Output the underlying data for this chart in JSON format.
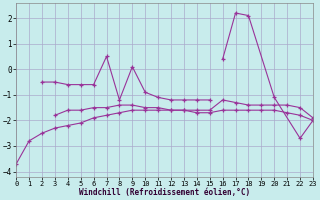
{
  "xlabel": "Windchill (Refroidissement éolien,°C)",
  "xlim": [
    0,
    23
  ],
  "ylim": [
    -4.2,
    2.6
  ],
  "xticks": [
    0,
    1,
    2,
    3,
    4,
    5,
    6,
    7,
    8,
    9,
    10,
    11,
    12,
    13,
    14,
    15,
    16,
    17,
    18,
    19,
    20,
    21,
    22,
    23
  ],
  "yticks": [
    -4,
    -3,
    -2,
    -1,
    0,
    1,
    2
  ],
  "background_color": "#c8ecec",
  "grid_color": "#aaaacc",
  "line_color": "#993399",
  "series": [
    [
      null,
      null,
      -0.5,
      -0.5,
      -0.6,
      -0.6,
      -0.6,
      0.5,
      -1.2,
      0.1,
      -0.9,
      -1.1,
      -1.2,
      -1.2,
      -1.2,
      -1.2,
      null,
      null,
      null,
      null,
      null,
      null,
      null,
      null
    ],
    [
      null,
      null,
      null,
      -1.8,
      -1.6,
      -1.6,
      -1.5,
      -1.5,
      -1.4,
      -1.4,
      -1.5,
      -1.5,
      -1.6,
      -1.6,
      -1.6,
      -1.6,
      -1.2,
      -1.3,
      -1.4,
      -1.4,
      -1.4,
      -1.4,
      -1.5,
      -1.9
    ],
    [
      -3.7,
      -2.8,
      -2.5,
      -2.3,
      -2.2,
      -2.1,
      -1.9,
      -1.8,
      -1.7,
      -1.6,
      -1.6,
      -1.6,
      -1.6,
      -1.6,
      -1.7,
      -1.7,
      -1.6,
      -1.6,
      -1.6,
      -1.6,
      -1.6,
      -1.7,
      -1.8,
      -2.0
    ],
    [
      null,
      null,
      null,
      null,
      null,
      null,
      null,
      null,
      null,
      null,
      null,
      null,
      null,
      null,
      null,
      null,
      0.4,
      2.2,
      2.1,
      null,
      -1.1,
      null,
      -2.7,
      -2.0
    ]
  ]
}
